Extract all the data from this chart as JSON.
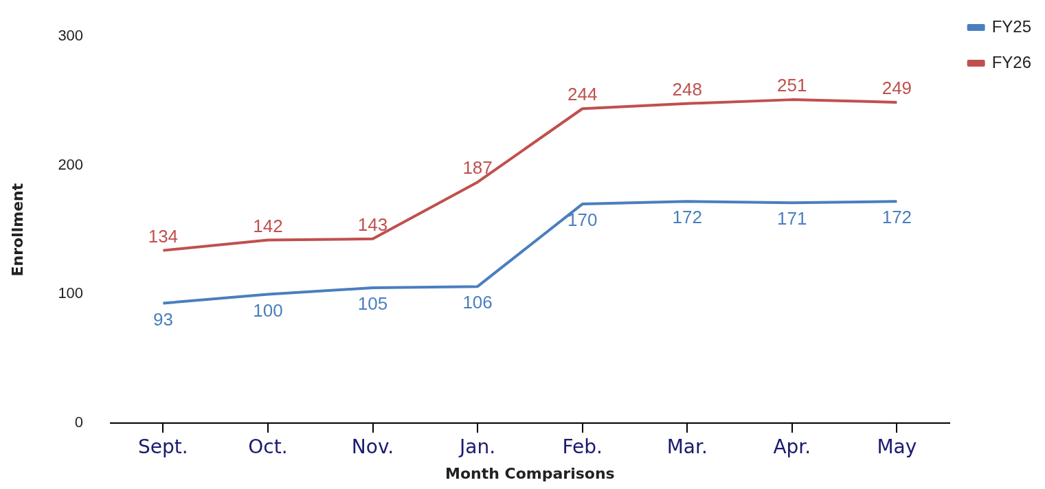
{
  "chart_data": {
    "type": "line",
    "xlabel": "Month Comparisons",
    "ylabel": "Enrollment",
    "categories": [
      "Sept.",
      "Oct.",
      "Nov.",
      "Jan.",
      "Feb.",
      "Mar.",
      "Apr.",
      "May"
    ],
    "series": [
      {
        "name": "FY25",
        "color": "#4a7ebf",
        "values": [
          93,
          100,
          105,
          106,
          170,
          172,
          171,
          172
        ]
      },
      {
        "name": "FY26",
        "color": "#c0504d",
        "values": [
          134,
          142,
          143,
          187,
          244,
          248,
          251,
          249
        ]
      }
    ],
    "ylim": [
      0,
      300
    ],
    "yticks": [
      0,
      100,
      200,
      300
    ],
    "grid": false,
    "legend": "top right",
    "data_labels": true,
    "marker": "none",
    "line_style": "solid"
  }
}
